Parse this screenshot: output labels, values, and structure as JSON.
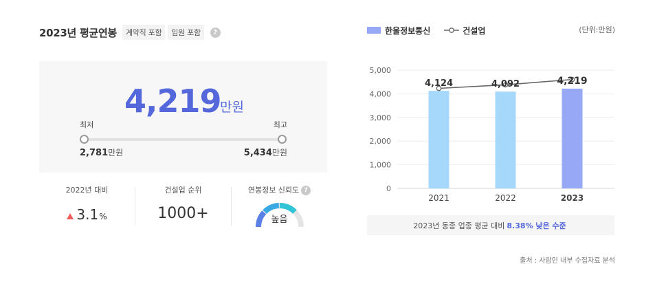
{
  "left": {
    "title": "2023년 평균연봉",
    "tags": [
      "계약직 포함",
      "임원 포함"
    ],
    "help_glyph": "?",
    "average_value": "4,219",
    "average_unit": "만원",
    "min_label": "최저",
    "max_label": "최고",
    "min_value": "2,781",
    "max_value": "5,434",
    "value_unit": "만원"
  },
  "stats": {
    "yoy_label": "2022년 대비",
    "yoy_value": "3.1",
    "yoy_unit": "%",
    "yoy_direction": "up",
    "rank_label": "건설업 순위",
    "rank_value": "1000+",
    "reliability_label": "연봉정보 신뢰도",
    "reliability_value": "높음",
    "reliability_level": 0.75
  },
  "chart": {
    "legend_company": "한울정보통신",
    "legend_industry": "건설업",
    "unit_note": "(단위:만원)",
    "compare_prefix": "2023년 동종 업종 평균 대비",
    "compare_highlight": "8.38% 낮은 수준",
    "source": "출처 : 사람인 내부 수집자료 분석"
  },
  "colors": {
    "accent": "#5468db",
    "bar_past": "#a6d8fb",
    "bar_current": "#96a8f6",
    "industry_line": "#666666",
    "up_arrow": "#f35b5b",
    "gauge": [
      "#5b80e6",
      "#39a9e4",
      "#30c4d6"
    ]
  },
  "chart_data": {
    "type": "bar",
    "categories": [
      "2021",
      "2022",
      "2023"
    ],
    "series": [
      {
        "name": "한울정보통신",
        "kind": "bar",
        "values": [
          4124,
          4092,
          4219
        ]
      },
      {
        "name": "건설업",
        "kind": "line",
        "values": [
          4230,
          4380,
          4604
        ]
      }
    ],
    "value_labels": [
      "4,124",
      "4,092",
      "4,219"
    ],
    "yticks": [
      "5,000",
      "4,000",
      "3,000",
      "2,000",
      "1,000",
      "0"
    ],
    "ylim": [
      0,
      5000
    ],
    "grid": true,
    "legend_position": "top-left"
  }
}
